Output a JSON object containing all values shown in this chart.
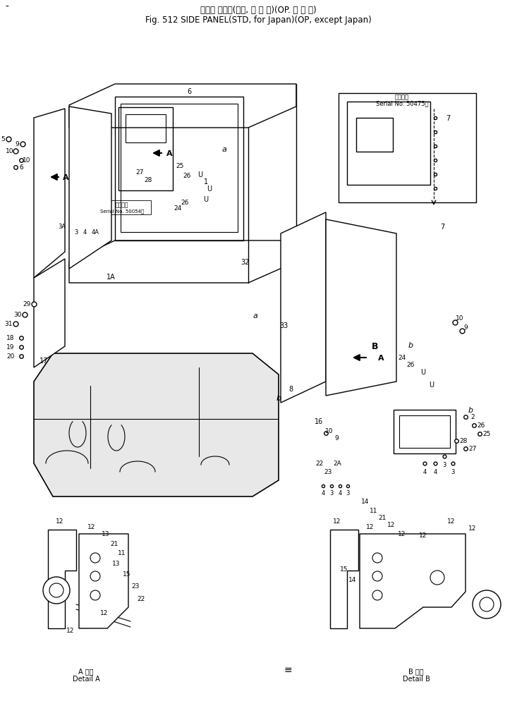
{
  "title_jp": "サイド パネル(標準, 国 内 向)(OP. 海 外 向)",
  "title_en": "Fig. 512 SIDE PANEL(STD, for Japan)(OP, except Japan)",
  "bg_color": "#ffffff",
  "line_color": "#000000",
  "fig_width": 7.33,
  "fig_height": 9.95,
  "dpi": 100,
  "bottom_left_label_jp": "A 詳細",
  "bottom_left_label_en": "Detail A",
  "bottom_right_label_jp": "B 詳細",
  "bottom_right_label_en": "Detail B",
  "serial_note_jp": "適用号機",
  "serial_note_en": "Serial No. 50475～",
  "serial_note2_jp": "適用号機",
  "serial_note2_en": "Serial No. 50054～"
}
